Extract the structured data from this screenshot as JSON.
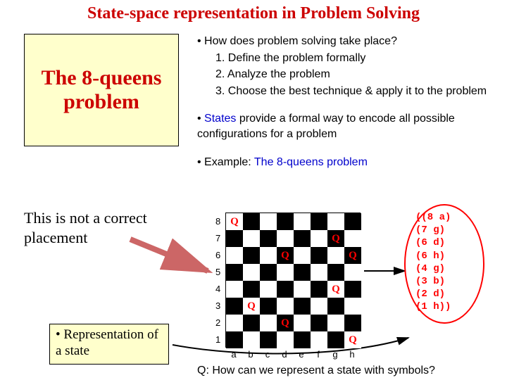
{
  "title": {
    "text": "State-space representation in Problem Solving",
    "color": "#cc0000",
    "fontsize": 24
  },
  "titleBox": {
    "text": "The 8-queens problem",
    "color": "#cc0000",
    "background": "#ffffcc",
    "fontsize": 30
  },
  "bullets": {
    "b1": "How does problem solving take place?",
    "steps": {
      "s1": "1. Define the problem formally",
      "s2": "2. Analyze the problem",
      "s3": "3. Choose the best technique & apply it to the problem"
    },
    "b2a": "States",
    "b2b": " provide a formal way to encode all possible configurations for a problem",
    "b3a": "Example: ",
    "b3b": "The 8-queens problem",
    "fontsize": 16,
    "highlight_color": "#0000cc"
  },
  "notCorrect": {
    "text": "This is not a correct placement",
    "fontsize": 22
  },
  "repBox": {
    "text": "• Representation of a state",
    "fontsize": 19,
    "background": "#ffffcc"
  },
  "board": {
    "ranks": [
      "8",
      "7",
      "6",
      "5",
      "4",
      "3",
      "2",
      "1"
    ],
    "files": [
      "a",
      "b",
      "c",
      "d",
      "e",
      "f",
      "g",
      "h"
    ],
    "dark_color": "#000000",
    "light_color": "#ffffff",
    "queen_color": "#ff0000",
    "queens": [
      {
        "rank": 8,
        "file": "a"
      },
      {
        "rank": 7,
        "file": "g"
      },
      {
        "rank": 6,
        "file": "d"
      },
      {
        "rank": 6,
        "file": "h"
      },
      {
        "rank": 4,
        "file": "g"
      },
      {
        "rank": 3,
        "file": "b"
      },
      {
        "rank": 2,
        "file": "d"
      },
      {
        "rank": 1,
        "file": "h"
      }
    ]
  },
  "stateRep": {
    "color": "#ff0000",
    "lines": [
      "((8 a)",
      " (7 g)",
      " (6 d)",
      " (6 h)",
      " (4 g)",
      " (3 b)",
      " (2 d)",
      " (1 h))"
    ]
  },
  "howQ": {
    "text": "Q: How can we represent a state with symbols?",
    "fontsize": 16
  },
  "arrows": {
    "color_red": "#cc6666",
    "color_black": "#000000"
  }
}
